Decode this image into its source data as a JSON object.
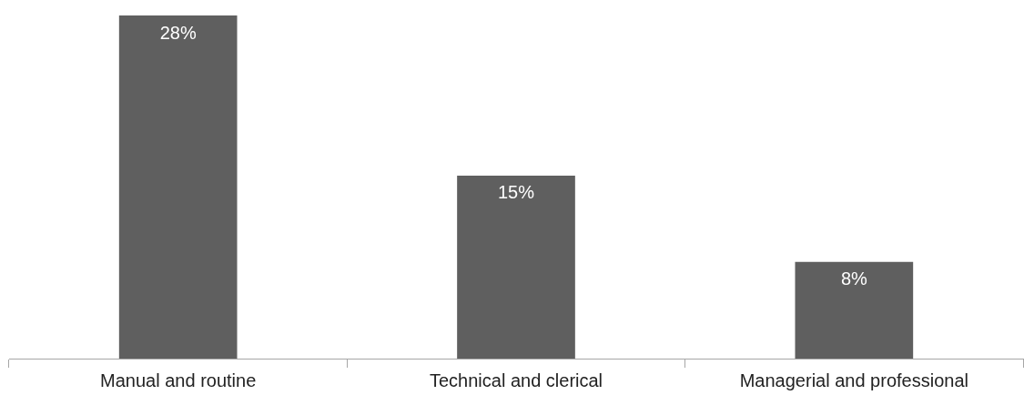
{
  "chart_data": {
    "type": "bar",
    "categories": [
      "Manual and routine",
      "Technical and clerical",
      "Managerial and professional"
    ],
    "values": [
      28,
      15,
      8
    ],
    "value_labels": [
      "28%",
      "15%",
      "8%"
    ],
    "color": "#5f5f5f",
    "ylim": [
      0,
      28
    ],
    "tick_labels": "x",
    "grid": false,
    "legend": false
  }
}
